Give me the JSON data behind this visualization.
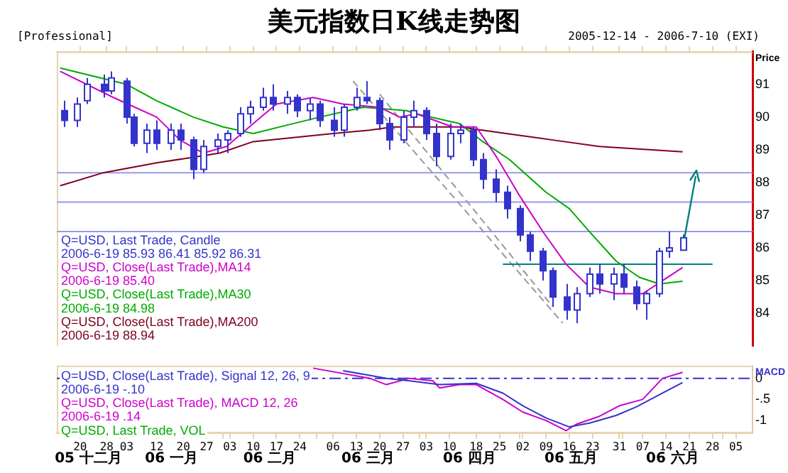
{
  "chart_data": [
    {
      "type": "candlestick",
      "title": "美元指数日K线走势图",
      "subtitle": "[Professional]",
      "ylabel": "Price",
      "legend": "bottom left",
      "tick_labels": "y",
      "xlim": [
        "2005-12-13",
        "2006-07-10"
      ],
      "xticks": [
        {
          "value": "2005-12-20",
          "label": null
        },
        {
          "value": "2005-12-28",
          "label": null
        },
        {
          "value": "2006-01-03",
          "label": null
        },
        {
          "value": "2006-01-12",
          "label": null
        },
        {
          "value": "2006-01-20",
          "label": null
        },
        {
          "value": "2006-01-27",
          "label": null
        },
        {
          "value": "2006-02-03",
          "label": null
        },
        {
          "value": "2006-02-10",
          "label": null
        },
        {
          "value": "2006-02-17",
          "label": null
        },
        {
          "value": "2006-02-24",
          "label": null
        },
        {
          "value": "2006-03-06",
          "label": null
        },
        {
          "value": "2006-03-13",
          "label": null
        },
        {
          "value": "2006-03-20",
          "label": null
        },
        {
          "value": "2006-03-27",
          "label": null
        },
        {
          "value": "2006-04-03",
          "label": null
        },
        {
          "value": "2006-04-10",
          "label": null
        },
        {
          "value": "2006-04-18",
          "label": null
        },
        {
          "value": "2006-04-25",
          "label": null
        },
        {
          "value": "2006-05-02",
          "label": null
        },
        {
          "value": "2006-05-09",
          "label": null
        },
        {
          "value": "2006-05-16",
          "label": null
        },
        {
          "value": "2006-05-23",
          "label": null
        },
        {
          "value": "2006-05-31",
          "label": null
        },
        {
          "value": "2006-06-07",
          "label": null
        },
        {
          "value": "2006-06-14",
          "label": null
        },
        {
          "value": "2006-06-21",
          "label": null
        },
        {
          "value": "2006-06-28",
          "label": null
        },
        {
          "value": "2006-07-05",
          "label": null
        }
      ],
      "ylim": [
        83,
        92
      ],
      "yticks": [
        84,
        85,
        86,
        87,
        88,
        89,
        90,
        91
      ],
      "ref_lines": [
        {
          "axis": "y",
          "value": 88.3,
          "color": "#9999ee"
        },
        {
          "axis": "y",
          "value": 87.4,
          "color": "#9999ee"
        },
        {
          "axis": "y",
          "value": 86.5,
          "color": "#9999ee"
        }
      ],
      "annotations": [
        "2006-6-19 85.93 86.41 85.92 86.31",
        "2006-6-19 85.40",
        "2006-6-19 84.98",
        "2006-6-19 88.94",
        "2005-12-14 - 2006-7-10 (EXI)"
      ],
      "series": [
        {
          "name": "Q=USD, Last Trade, Candle",
          "color": "#3333cc",
          "x": [
            "2005-12-15",
            "2005-12-19",
            "2005-12-22",
            "2005-12-27",
            "2005-12-29",
            "2006-01-03",
            "2006-01-05",
            "2006-01-09",
            "2006-01-12",
            "2006-01-16",
            "2006-01-19",
            "2006-01-23",
            "2006-01-26",
            "2006-01-30",
            "2006-02-02",
            "2006-02-06",
            "2006-02-09",
            "2006-02-13",
            "2006-02-16",
            "2006-02-20",
            "2006-02-23",
            "2006-02-27",
            "2006-03-02",
            "2006-03-06",
            "2006-03-09",
            "2006-03-13",
            "2006-03-16",
            "2006-03-20",
            "2006-03-23",
            "2006-03-27",
            "2006-03-30",
            "2006-04-03",
            "2006-04-06",
            "2006-04-10",
            "2006-04-13",
            "2006-04-17",
            "2006-04-20",
            "2006-04-24",
            "2006-04-27",
            "2006-05-01",
            "2006-05-04",
            "2006-05-08",
            "2006-05-11",
            "2006-05-15",
            "2006-05-18",
            "2006-05-22",
            "2006-05-25",
            "2006-05-29",
            "2006-06-01",
            "2006-06-05",
            "2006-06-08",
            "2006-06-12",
            "2006-06-15",
            "2006-06-19"
          ],
          "ohlc": [
            [
              90.2,
              90.5,
              89.7,
              89.9
            ],
            [
              89.9,
              90.6,
              89.7,
              90.4
            ],
            [
              90.5,
              91.2,
              90.4,
              91.0
            ],
            [
              91.0,
              91.3,
              90.6,
              90.8
            ],
            [
              90.8,
              91.4,
              90.7,
              91.2
            ],
            [
              91.1,
              91.2,
              89.8,
              90.0
            ],
            [
              90.0,
              90.1,
              89.1,
              89.2
            ],
            [
              89.2,
              89.8,
              88.9,
              89.6
            ],
            [
              89.6,
              89.9,
              89.0,
              89.2
            ],
            [
              89.2,
              89.8,
              89.0,
              89.6
            ],
            [
              89.6,
              89.8,
              89.0,
              89.3
            ],
            [
              89.3,
              89.4,
              88.1,
              88.4
            ],
            [
              88.4,
              89.3,
              88.3,
              89.1
            ],
            [
              89.1,
              89.5,
              88.9,
              89.3
            ],
            [
              89.3,
              89.6,
              88.9,
              89.5
            ],
            [
              89.5,
              90.3,
              89.4,
              90.1
            ],
            [
              90.1,
              90.5,
              89.8,
              90.3
            ],
            [
              90.3,
              90.9,
              90.2,
              90.6
            ],
            [
              90.6,
              91.0,
              90.2,
              90.4
            ],
            [
              90.4,
              90.8,
              90.1,
              90.6
            ],
            [
              90.6,
              90.7,
              90.0,
              90.2
            ],
            [
              90.2,
              90.6,
              89.9,
              90.4
            ],
            [
              90.4,
              90.5,
              89.7,
              89.9
            ],
            [
              89.9,
              90.3,
              89.4,
              89.6
            ],
            [
              89.6,
              90.4,
              89.4,
              90.3
            ],
            [
              90.3,
              90.9,
              90.2,
              90.6
            ],
            [
              90.6,
              91.1,
              90.4,
              90.5
            ],
            [
              90.5,
              90.6,
              89.6,
              89.8
            ],
            [
              89.8,
              90.0,
              89.0,
              89.3
            ],
            [
              89.3,
              90.2,
              89.2,
              90.0
            ],
            [
              90.0,
              90.5,
              89.7,
              90.2
            ],
            [
              90.2,
              90.3,
              89.3,
              89.5
            ],
            [
              89.5,
              89.8,
              88.5,
              88.8
            ],
            [
              88.8,
              89.8,
              88.7,
              89.5
            ],
            [
              89.5,
              89.8,
              89.2,
              89.6
            ],
            [
              89.6,
              89.7,
              88.5,
              88.7
            ],
            [
              88.7,
              88.9,
              87.8,
              88.1
            ],
            [
              88.1,
              88.4,
              87.4,
              87.7
            ],
            [
              87.7,
              87.9,
              86.9,
              87.2
            ],
            [
              87.2,
              87.3,
              86.2,
              86.4
            ],
            [
              86.4,
              86.5,
              85.6,
              85.9
            ],
            [
              85.9,
              86.0,
              85.0,
              85.3
            ],
            [
              85.3,
              85.4,
              84.2,
              84.5
            ],
            [
              84.5,
              84.9,
              83.8,
              84.1
            ],
            [
              84.1,
              84.8,
              83.7,
              84.6
            ],
            [
              84.6,
              85.4,
              84.5,
              85.2
            ],
            [
              85.2,
              85.5,
              84.6,
              84.9
            ],
            [
              84.9,
              85.4,
              84.4,
              85.2
            ],
            [
              85.2,
              85.5,
              84.6,
              84.8
            ],
            [
              84.8,
              85.0,
              84.1,
              84.3
            ],
            [
              84.3,
              84.7,
              83.8,
              84.6
            ],
            [
              84.6,
              86.0,
              84.5,
              85.9
            ],
            [
              85.9,
              86.5,
              85.7,
              86.0
            ],
            [
              85.93,
              86.41,
              85.92,
              86.31
            ]
          ]
        },
        {
          "type": "line",
          "name": "Q=USD, Close(Last Trade),MA14",
          "color": "#cc00cc",
          "x": [
            "2005-12-14",
            "2005-12-30",
            "2006-01-12",
            "2006-01-19",
            "2006-01-26",
            "2006-02-02",
            "2006-02-10",
            "2006-02-17",
            "2006-02-28",
            "2006-03-09",
            "2006-03-20",
            "2006-03-26",
            "2006-03-31",
            "2006-04-11",
            "2006-04-18",
            "2006-04-24",
            "2006-05-01",
            "2006-05-08",
            "2006-05-15",
            "2006-05-22",
            "2006-05-30",
            "2006-06-07",
            "2006-06-13",
            "2006-06-19"
          ],
          "values": [
            91.4,
            90.6,
            90.0,
            89.3,
            88.9,
            89.1,
            89.8,
            90.4,
            90.6,
            90.4,
            90.3,
            90.0,
            90.1,
            89.7,
            89.7,
            88.8,
            87.6,
            86.5,
            85.5,
            84.8,
            84.6,
            84.6,
            85.0,
            85.4
          ]
        },
        {
          "type": "line",
          "name": "Q=USD, Close(Last Trade),MA30",
          "color": "#00aa00",
          "x": [
            "2005-12-14",
            "2006-01-03",
            "2006-01-12",
            "2006-01-23",
            "2006-02-01",
            "2006-02-10",
            "2006-02-20",
            "2006-03-02",
            "2006-03-15",
            "2006-03-28",
            "2006-03-31",
            "2006-04-13",
            "2006-04-20",
            "2006-04-28",
            "2006-05-09",
            "2006-05-16",
            "2006-05-22",
            "2006-05-30",
            "2006-06-06",
            "2006-06-12",
            "2006-06-19"
          ],
          "values": [
            91.5,
            91.0,
            90.5,
            90.0,
            89.7,
            89.5,
            89.75,
            90.0,
            90.3,
            90.2,
            90.1,
            89.8,
            89.25,
            88.7,
            87.7,
            87.2,
            86.5,
            85.6,
            85.1,
            84.9,
            84.98
          ]
        },
        {
          "type": "line",
          "name": "Q=USD, Close(Last Trade),MA200",
          "color": "#800020",
          "x": [
            "2005-12-14",
            "2005-12-27",
            "2006-01-12",
            "2006-01-31",
            "2006-02-10",
            "2006-03-06",
            "2006-03-17",
            "2006-03-24",
            "2006-04-13",
            "2006-04-27",
            "2006-05-11",
            "2006-05-25",
            "2006-06-19"
          ],
          "values": [
            87.9,
            88.3,
            88.6,
            88.9,
            89.25,
            89.5,
            89.6,
            89.7,
            89.7,
            89.5,
            89.3,
            89.1,
            88.94
          ]
        },
        {
          "type": "line",
          "color": "#008080",
          "x": [
            "2006-04-26",
            "2006-06-28"
          ],
          "values": [
            85.5,
            85.5
          ]
        },
        {
          "type": "line",
          "color": "#999999",
          "line_style": "dashed",
          "x": [
            "2006-03-12",
            "2006-05-14"
          ],
          "values": [
            91.1,
            83.7
          ]
        },
        {
          "type": "line",
          "color": "#999999",
          "line_style": "dashed",
          "x": [
            "2006-03-20",
            "2006-05-11"
          ],
          "values": [
            90.7,
            84.2
          ]
        }
      ]
    },
    {
      "type": "line",
      "ylabel": "MACD",
      "legend": "top left",
      "xlim": [
        "2005-12-13",
        "2006-07-10"
      ],
      "xticks": [
        {
          "value": "2005-12-20",
          "label": "20"
        },
        {
          "value": "2005-12-28",
          "label": "28"
        },
        {
          "value": "2006-01-01",
          "label": null
        },
        {
          "value": "2006-01-03",
          "label": "03"
        },
        {
          "value": "2006-01-12",
          "label": "12"
        },
        {
          "value": "2006-01-20",
          "label": "20"
        },
        {
          "value": "2006-01-27",
          "label": "27"
        },
        {
          "value": "2006-02-01",
          "label": null
        },
        {
          "value": "2006-02-03",
          "label": "03"
        },
        {
          "value": "2006-02-10",
          "label": "10"
        },
        {
          "value": "2006-02-17",
          "label": "17"
        },
        {
          "value": "2006-02-24",
          "label": "24"
        },
        {
          "value": "2006-03-01",
          "label": null
        },
        {
          "value": "2006-03-06",
          "label": "06"
        },
        {
          "value": "2006-03-13",
          "label": "13"
        },
        {
          "value": "2006-03-20",
          "label": "20"
        },
        {
          "value": "2006-03-27",
          "label": "27"
        },
        {
          "value": "2006-04-01",
          "label": null
        },
        {
          "value": "2006-04-03",
          "label": "03"
        },
        {
          "value": "2006-04-10",
          "label": "10"
        },
        {
          "value": "2006-04-18",
          "label": "18"
        },
        {
          "value": "2006-04-25",
          "label": "25"
        },
        {
          "value": "2006-05-01",
          "label": null
        },
        {
          "value": "2006-05-02",
          "label": "02"
        },
        {
          "value": "2006-05-09",
          "label": "09"
        },
        {
          "value": "2006-05-16",
          "label": "16"
        },
        {
          "value": "2006-05-23",
          "label": "23"
        },
        {
          "value": "2006-05-31",
          "label": "31"
        },
        {
          "value": "2006-06-01",
          "label": null
        },
        {
          "value": "2006-06-07",
          "label": "07"
        },
        {
          "value": "2006-06-14",
          "label": "14"
        },
        {
          "value": "2006-06-21",
          "label": "21"
        },
        {
          "value": "2006-06-28",
          "label": "28"
        },
        {
          "value": "2006-07-01",
          "label": null
        },
        {
          "value": "2006-07-05",
          "label": "05"
        }
      ],
      "ylim": [
        -1.3,
        0.3
      ],
      "yticks": [
        0,
        {
          "value": -0.5,
          "label": "-.5"
        },
        -1
      ],
      "ref_lines": [
        {
          "axis": "y",
          "value": 0,
          "color": "#3333cc",
          "line_style": "dashed"
        }
      ],
      "annotations": [
        "2006-6-19 -.10",
        "2006-6-19 .14",
        "05 十二月",
        "06 一月",
        "06 二月",
        "06 三月",
        "06 四月",
        "06 五月",
        "06 六月"
      ],
      "series": [
        {
          "name": "Q=USD, Close(Last Trade), Signal 12, 26, 9",
          "color": "#3333cc",
          "x": [
            "2006-03-09",
            "2006-03-22",
            "2006-03-29",
            "2006-04-07",
            "2006-04-18",
            "2006-04-26",
            "2006-05-02",
            "2006-05-09",
            "2006-05-16",
            "2006-05-22",
            "2006-05-30",
            "2006-06-05",
            "2006-06-13",
            "2006-06-19"
          ],
          "values": [
            0.18,
            0,
            -0.06,
            -0.15,
            -0.12,
            -0.35,
            -0.65,
            -0.94,
            -1.15,
            -1.06,
            -0.88,
            -0.68,
            -0.35,
            -0.1
          ]
        },
        {
          "name": "Q=USD, Close(Last Trade), MACD 12, 26",
          "color": "#cc00cc",
          "x": [
            "2006-02-28",
            "2006-03-17",
            "2006-03-22",
            "2006-03-29",
            "2006-04-05",
            "2006-04-07",
            "2006-04-13",
            "2006-04-18",
            "2006-04-26",
            "2006-05-02",
            "2006-05-09",
            "2006-05-15",
            "2006-05-18",
            "2006-05-25",
            "2006-05-31",
            "2006-06-07",
            "2006-06-13",
            "2006-06-19"
          ],
          "values": [
            0.24,
            0,
            -0.15,
            0,
            -0.06,
            -0.23,
            -0.15,
            -0.15,
            -0.5,
            -0.8,
            -1.0,
            -1.24,
            -1.09,
            -0.9,
            -0.65,
            -0.5,
            0,
            0.14
          ]
        },
        {
          "name": "Q=USD, Last Trade, VOL",
          "color": "#00aa00"
        }
      ]
    }
  ]
}
